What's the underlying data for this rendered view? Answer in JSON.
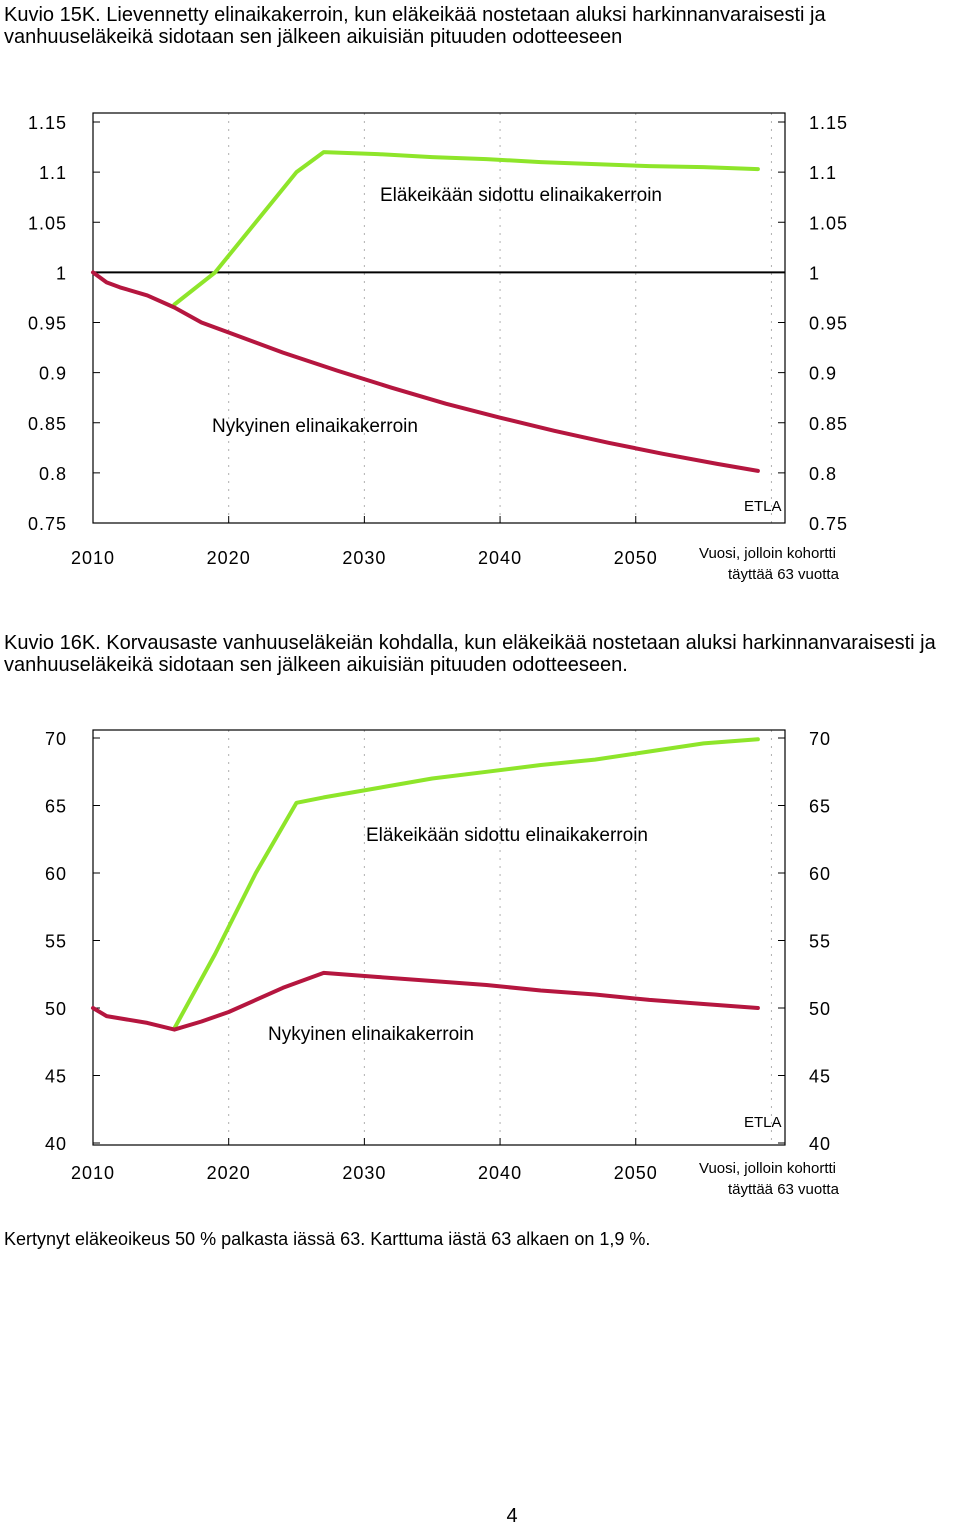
{
  "captions": {
    "fig15": "Kuvio 15K. Lievennetty elinaikakerroin, kun eläkeikää nostetaan aluksi harkinnanvaraisesti ja vanhuuseläkeikä sidotaan sen jälkeen aikuisiän pituuden odotteeseen",
    "fig16": "Kuvio 16K. Korvausaste vanhuuseläkeiän kohdalla, kun eläkeikää nostetaan aluksi harkinnanvaraisesti ja vanhuuseläkeikä sidotaan sen jälkeen aikuisiän pituuden odotteeseen."
  },
  "footnote": "Kertynyt eläkeoikeus 50 % palkasta iässä 63. Karttuma iästä 63 alkaen on 1,9 %.",
  "page_number": "4",
  "colors": {
    "green": "#8ee52a",
    "red": "#b5163f",
    "axis": "#000000",
    "grid": "#b0b0b0"
  },
  "chart_data": [
    {
      "type": "line",
      "title": "Kuvio 15K",
      "xlabel": "Vuosi, jolloin kohortti täyttää 63 vuotta",
      "xlabel_line1": "Vuosi, jolloin kohortti",
      "xlabel_line2": "täyttää 63 vuotta",
      "source": "ETLA",
      "xlim": [
        2010,
        2061
      ],
      "ylim": [
        0.75,
        1.15
      ],
      "xticks": [
        "2010",
        "2020",
        "2030",
        "2040",
        "2050"
      ],
      "yticks": [
        "0.75",
        "0.8",
        "0.85",
        "0.9",
        "0.95",
        "1",
        "1.05",
        "1.1",
        "1.15"
      ],
      "reference_line": 1,
      "grid": "vertical dashed",
      "series": [
        {
          "name": "Eläkeikään sidottu elinaikakerroin",
          "color": "green",
          "x": [
            2016,
            2019,
            2022,
            2025,
            2027,
            2031,
            2035,
            2039,
            2043,
            2047,
            2051,
            2055,
            2059
          ],
          "y": [
            0.968,
            1.0,
            1.05,
            1.1,
            1.12,
            1.118,
            1.115,
            1.113,
            1.11,
            1.108,
            1.106,
            1.105,
            1.103
          ]
        },
        {
          "name": "Nykyinen elinaikakerroin",
          "color": "red",
          "x": [
            2010,
            2011,
            2012,
            2014,
            2016,
            2018,
            2020,
            2024,
            2028,
            2032,
            2036,
            2040,
            2044,
            2048,
            2052,
            2056,
            2059
          ],
          "y": [
            1.0,
            0.99,
            0.985,
            0.977,
            0.965,
            0.95,
            0.94,
            0.92,
            0.902,
            0.885,
            0.869,
            0.855,
            0.842,
            0.83,
            0.819,
            0.809,
            0.802
          ]
        }
      ]
    },
    {
      "type": "line",
      "title": "Kuvio 16K",
      "xlabel": "Vuosi, jolloin kohortti täyttää 63 vuotta",
      "xlabel_line1": "Vuosi, jolloin kohortti",
      "xlabel_line2": "täyttää 63 vuotta",
      "source": "ETLA",
      "xlim": [
        2010,
        2061
      ],
      "ylim": [
        40,
        70
      ],
      "xticks": [
        "2010",
        "2020",
        "2030",
        "2040",
        "2050"
      ],
      "yticks": [
        "40",
        "45",
        "50",
        "55",
        "60",
        "65",
        "70"
      ],
      "grid": "vertical dashed",
      "series": [
        {
          "name": "Eläkeikään sidottu elinaikakerroin",
          "color": "green",
          "x": [
            2016,
            2019,
            2022,
            2025,
            2027,
            2031,
            2035,
            2039,
            2043,
            2047,
            2051,
            2055,
            2059
          ],
          "y": [
            48.5,
            54,
            60,
            65.2,
            65.6,
            66.3,
            67.0,
            67.5,
            68.0,
            68.4,
            69.0,
            69.6,
            69.9
          ]
        },
        {
          "name": "Nykyinen elinaikakerroin",
          "color": "red",
          "x": [
            2010,
            2011,
            2014,
            2016,
            2018,
            2020,
            2024,
            2027,
            2031,
            2035,
            2039,
            2043,
            2047,
            2051,
            2055,
            2059
          ],
          "y": [
            50.0,
            49.4,
            48.9,
            48.4,
            49.0,
            49.7,
            51.5,
            52.6,
            52.3,
            52.0,
            51.7,
            51.3,
            51.0,
            50.6,
            50.3,
            50.0
          ]
        }
      ]
    }
  ],
  "annotations": {
    "fig15_green_label": "Eläkeikään sidottu elinaikakerroin",
    "fig15_red_label": "Nykyinen elinaikakerroin",
    "fig16_green_label": "Eläkeikään sidottu elinaikakerroin",
    "fig16_red_label": "Nykyinen elinaikakerroin"
  }
}
